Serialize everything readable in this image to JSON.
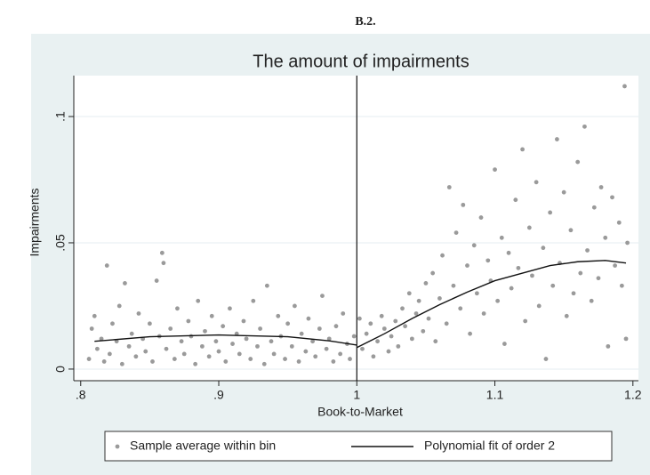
{
  "heading": "B.2.",
  "chart_data": {
    "type": "scatter",
    "title": "The amount of impairments",
    "x_label": "Book-to-Market",
    "y_label": "Impairments",
    "xlim": [
      0.795,
      1.204
    ],
    "ylim": [
      -0.0046,
      0.1162
    ],
    "xticks": [
      {
        "value": 0.8,
        "label": ".8"
      },
      {
        "value": 0.9,
        "label": ".9"
      },
      1,
      1.1,
      1.2
    ],
    "yticks": [
      0,
      {
        "value": 0.05,
        "label": ".05"
      },
      {
        "value": 0.1,
        "label": ".1"
      }
    ],
    "grid": true,
    "cutoff": 1,
    "series": [
      {
        "name": "Sample average within bin",
        "type": "scatter",
        "color": "#9a9a9a",
        "x": [
          0.806,
          0.808,
          0.81,
          0.812,
          0.815,
          0.817,
          0.819,
          0.821,
          0.823,
          0.826,
          0.828,
          0.83,
          0.832,
          0.835,
          0.837,
          0.84,
          0.842,
          0.845,
          0.847,
          0.85,
          0.852,
          0.855,
          0.857,
          0.859,
          0.86,
          0.862,
          0.865,
          0.868,
          0.87,
          0.873,
          0.875,
          0.878,
          0.88,
          0.883,
          0.885,
          0.888,
          0.89,
          0.893,
          0.895,
          0.898,
          0.9,
          0.903,
          0.905,
          0.908,
          0.91,
          0.913,
          0.915,
          0.918,
          0.92,
          0.923,
          0.925,
          0.928,
          0.93,
          0.933,
          0.935,
          0.938,
          0.94,
          0.943,
          0.945,
          0.948,
          0.95,
          0.953,
          0.955,
          0.958,
          0.96,
          0.963,
          0.965,
          0.968,
          0.97,
          0.973,
          0.975,
          0.978,
          0.98,
          0.983,
          0.985,
          0.988,
          0.99,
          0.993,
          0.995,
          0.998,
          1.002,
          1.004,
          1.007,
          1.01,
          1.012,
          1.015,
          1.018,
          1.02,
          1.023,
          1.025,
          1.028,
          1.03,
          1.033,
          1.035,
          1.038,
          1.04,
          1.043,
          1.045,
          1.048,
          1.05,
          1.052,
          1.055,
          1.057,
          1.06,
          1.062,
          1.065,
          1.067,
          1.07,
          1.072,
          1.075,
          1.077,
          1.08,
          1.082,
          1.085,
          1.087,
          1.09,
          1.092,
          1.095,
          1.097,
          1.1,
          1.102,
          1.105,
          1.107,
          1.11,
          1.112,
          1.115,
          1.117,
          1.12,
          1.122,
          1.125,
          1.127,
          1.13,
          1.132,
          1.135,
          1.137,
          1.14,
          1.142,
          1.145,
          1.147,
          1.15,
          1.152,
          1.155,
          1.157,
          1.16,
          1.162,
          1.165,
          1.167,
          1.17,
          1.172,
          1.175,
          1.177,
          1.18,
          1.182,
          1.185,
          1.187,
          1.19,
          1.192,
          1.194,
          1.195,
          1.196
        ],
        "values": [
          0.004,
          0.016,
          0.021,
          0.008,
          0.012,
          0.003,
          0.041,
          0.006,
          0.018,
          0.011,
          0.025,
          0.002,
          0.034,
          0.009,
          0.014,
          0.005,
          0.022,
          0.012,
          0.007,
          0.018,
          0.003,
          0.035,
          0.013,
          0.046,
          0.042,
          0.008,
          0.016,
          0.004,
          0.024,
          0.011,
          0.006,
          0.019,
          0.013,
          0.002,
          0.027,
          0.009,
          0.015,
          0.005,
          0.021,
          0.011,
          0.007,
          0.017,
          0.003,
          0.024,
          0.01,
          0.014,
          0.006,
          0.019,
          0.012,
          0.004,
          0.027,
          0.009,
          0.016,
          0.002,
          0.033,
          0.011,
          0.006,
          0.021,
          0.013,
          0.004,
          0.018,
          0.009,
          0.025,
          0.003,
          0.014,
          0.007,
          0.02,
          0.011,
          0.005,
          0.016,
          0.029,
          0.008,
          0.012,
          0.003,
          0.017,
          0.006,
          0.022,
          0.01,
          0.004,
          0.013,
          0.02,
          0.008,
          0.014,
          0.018,
          0.005,
          0.011,
          0.021,
          0.016,
          0.007,
          0.013,
          0.019,
          0.009,
          0.024,
          0.017,
          0.03,
          0.012,
          0.022,
          0.027,
          0.015,
          0.034,
          0.02,
          0.038,
          0.011,
          0.028,
          0.045,
          0.018,
          0.072,
          0.033,
          0.054,
          0.024,
          0.065,
          0.041,
          0.014,
          0.049,
          0.03,
          0.06,
          0.022,
          0.043,
          0.035,
          0.079,
          0.027,
          0.052,
          0.01,
          0.046,
          0.032,
          0.067,
          0.04,
          0.087,
          0.019,
          0.056,
          0.037,
          0.074,
          0.025,
          0.048,
          0.004,
          0.062,
          0.033,
          0.091,
          0.042,
          0.07,
          0.021,
          0.055,
          0.03,
          0.082,
          0.038,
          0.096,
          0.047,
          0.027,
          0.064,
          0.036,
          0.072,
          0.052,
          0.009,
          0.068,
          0.041,
          0.058,
          0.033,
          0.112,
          0.012,
          0.05
        ]
      },
      {
        "name": "Polynomial fit of order 2",
        "type": "line",
        "color": "#111111",
        "x": [
          0.81,
          0.85,
          0.9,
          0.95,
          0.98,
          1.0,
          1.0,
          1.0,
          1.02,
          1.04,
          1.06,
          1.08,
          1.1,
          1.12,
          1.14,
          1.16,
          1.18,
          1.195
        ],
        "values": [
          0.011,
          0.0128,
          0.0135,
          0.0128,
          0.0112,
          0.0095,
          null,
          0.0085,
          0.014,
          0.02,
          0.0255,
          0.0305,
          0.035,
          0.038,
          0.041,
          0.0425,
          0.043,
          0.042
        ]
      }
    ],
    "legend": "bottom"
  }
}
